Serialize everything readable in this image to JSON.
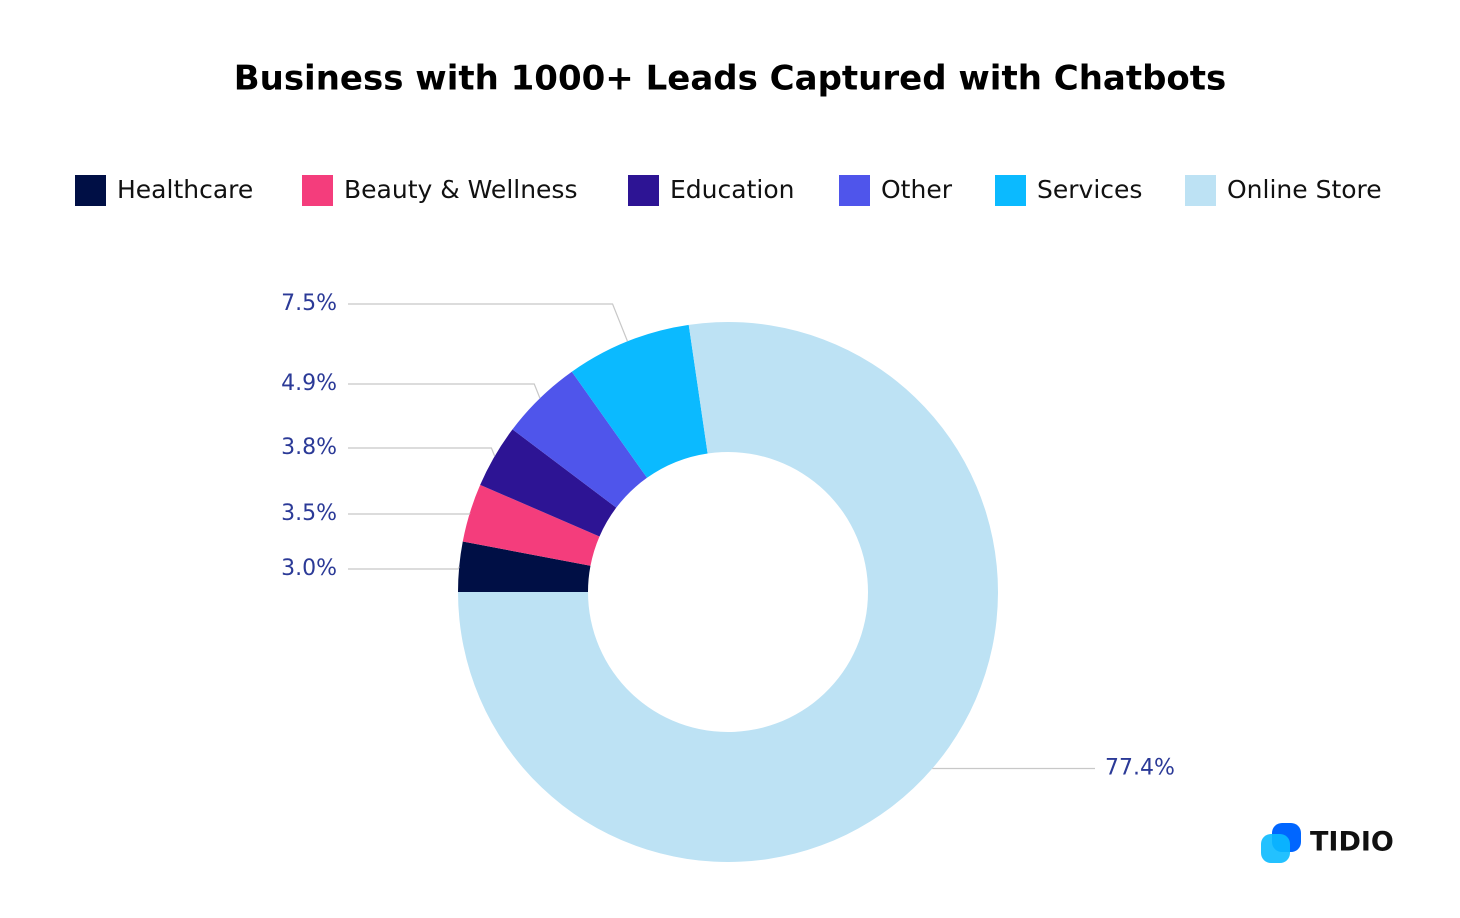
{
  "chart_data": {
    "type": "donut",
    "title": "Business with 1000+ Leads Captured with Chatbots",
    "categories": [
      "Healthcare",
      "Beauty & Wellness",
      "Education",
      "Other",
      "Services",
      "Online Store"
    ],
    "values": [
      3.0,
      3.5,
      3.8,
      4.9,
      7.5,
      77.4
    ],
    "value_labels": [
      "3.0%",
      "3.5%",
      "3.8%",
      "4.9%",
      "7.5%",
      "77.4%"
    ],
    "colors": [
      "#000f45",
      "#f43d7c",
      "#2d1494",
      "#4f55eb",
      "#0bbaff",
      "#bde2f4"
    ]
  },
  "logo": "TIDIO"
}
